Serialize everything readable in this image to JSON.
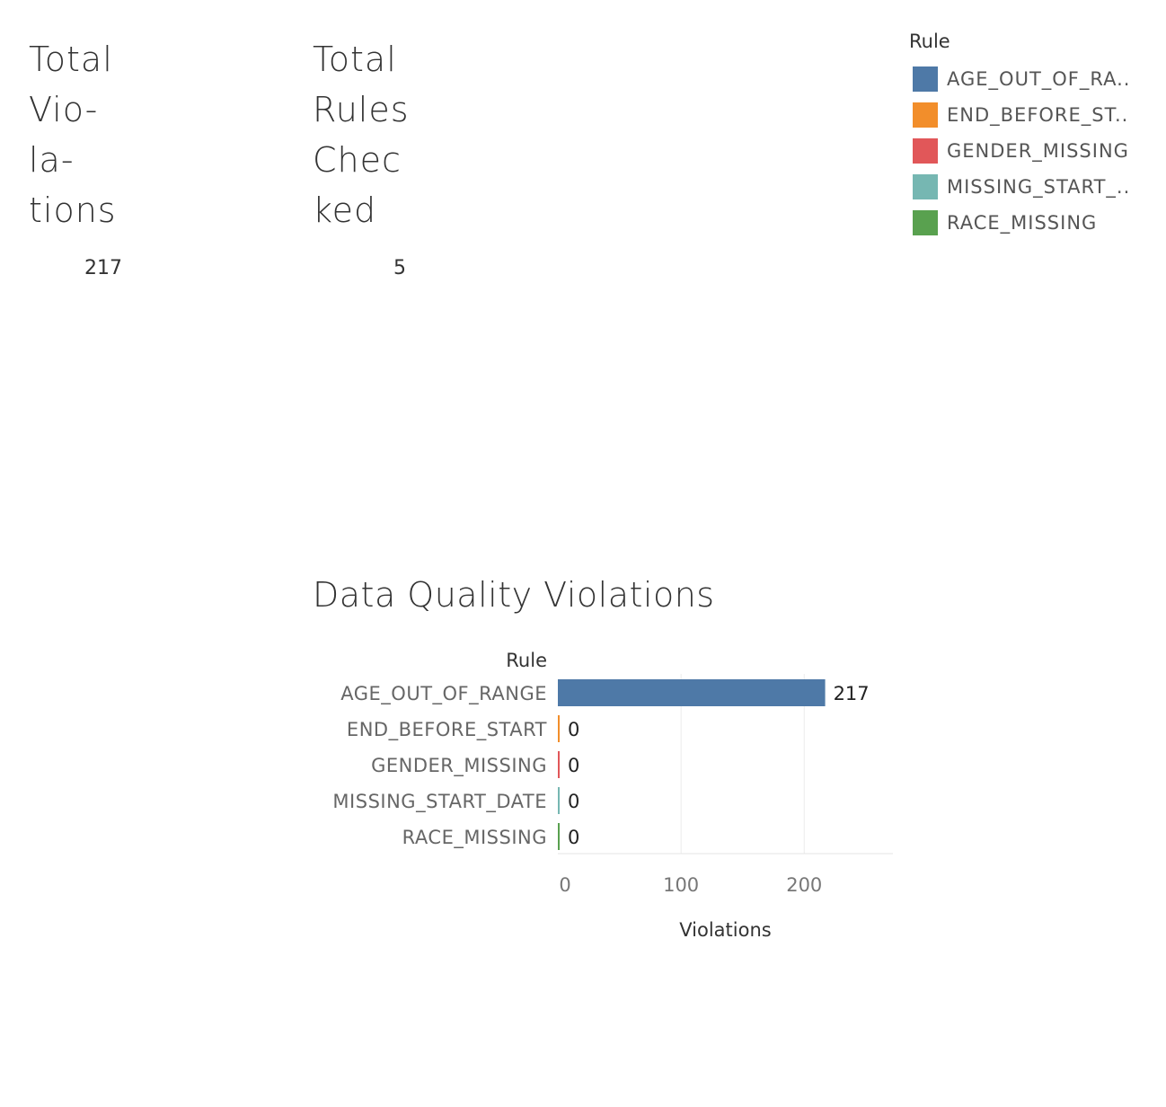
{
  "kpis": {
    "total_violations": {
      "title_lines": [
        "Total",
        "Vio-",
        "la-",
        "tions"
      ],
      "value": "217"
    },
    "total_rules_checked": {
      "title_lines": [
        "Total",
        "Rules",
        "Chec",
        "ked"
      ],
      "value": "5"
    }
  },
  "legend": {
    "title": "Rule",
    "items": [
      {
        "label": "AGE_OUT_OF_RA..",
        "color": "#4e79a7"
      },
      {
        "label": "END_BEFORE_ST..",
        "color": "#f28e2b"
      },
      {
        "label": "GENDER_MISSING",
        "color": "#e15759"
      },
      {
        "label": "MISSING_START_..",
        "color": "#76b7b2"
      },
      {
        "label": "RACE_MISSING",
        "color": "#59a14f"
      }
    ]
  },
  "chart_data": {
    "type": "bar",
    "orientation": "horizontal",
    "title": "Data Quality Violations",
    "row_header": "Rule",
    "xlabel": "Violations",
    "categories": [
      "AGE_OUT_OF_RANGE",
      "END_BEFORE_START",
      "GENDER_MISSING",
      "MISSING_START_DATE",
      "RACE_MISSING"
    ],
    "values": [
      217,
      0,
      0,
      0,
      0
    ],
    "data_labels": [
      "217",
      "0",
      "0",
      "0",
      "0"
    ],
    "colors": [
      "#4e79a7",
      "#f28e2b",
      "#e15759",
      "#76b7b2",
      "#59a14f"
    ],
    "xticks": [
      0,
      100,
      200
    ],
    "xlim": [
      0,
      272
    ],
    "grid": true,
    "legend_position": "top-right"
  }
}
